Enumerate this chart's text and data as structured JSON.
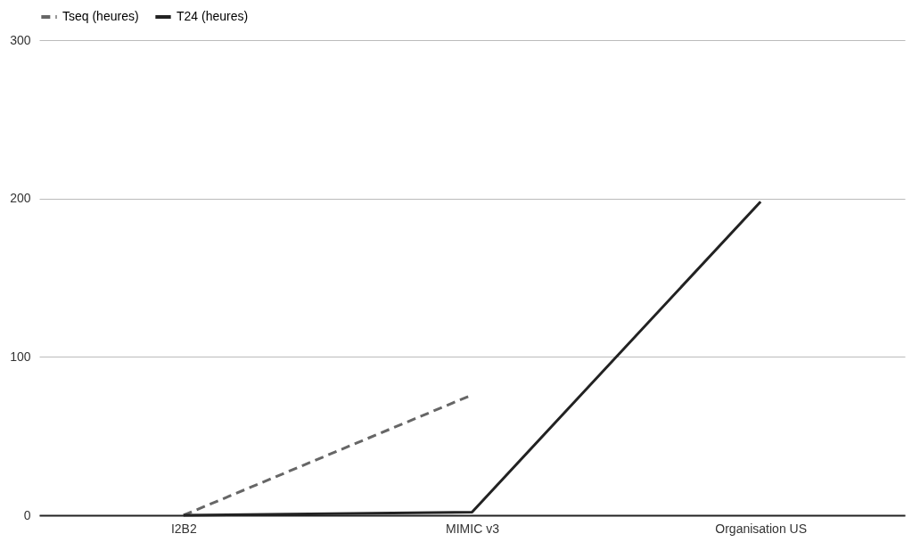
{
  "chart_data": {
    "type": "line",
    "categories": [
      "I2B2",
      "MIMIC v3",
      "Organisation US"
    ],
    "series": [
      {
        "name": "Tseq (heures)",
        "color": "#666666",
        "line_style": "dashed",
        "values": [
          0,
          76,
          null
        ]
      },
      {
        "name": "T24 (heures)",
        "color": "#222222",
        "line_style": "solid",
        "values": [
          0,
          2,
          198
        ]
      }
    ],
    "ylim": [
      0,
      300
    ],
    "yticks": [
      0,
      100,
      200,
      300
    ],
    "grid": "y",
    "legend": "top",
    "marker": "none"
  }
}
